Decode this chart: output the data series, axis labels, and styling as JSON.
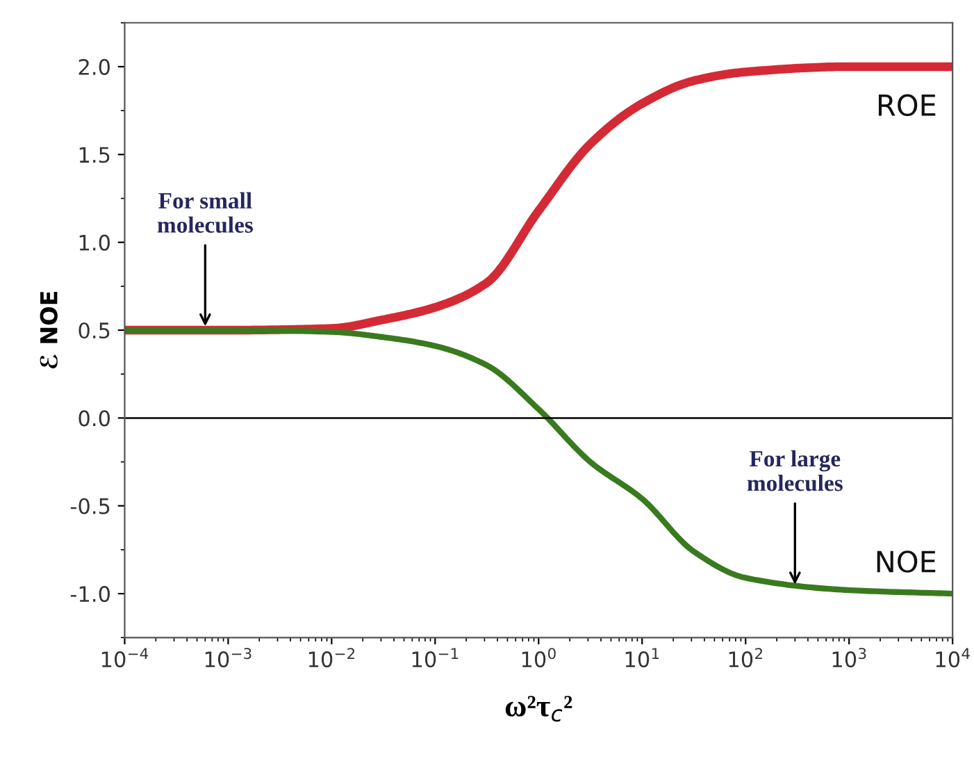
{
  "chart_data": {
    "type": "line",
    "xlabel": "ω²τ$_{c}$²",
    "ylabel": "ℰ NOE",
    "log": "x",
    "xlim": [
      0.0001,
      10000
    ],
    "ylim": [
      -1.25,
      2.25
    ],
    "xticks": [
      {
        "value": 0.0001,
        "label": "10$^{−4}$"
      },
      {
        "value": 0.001,
        "label": "10$^{−3}$"
      },
      {
        "value": 0.01,
        "label": "10$^{−2}$"
      },
      {
        "value": 0.1,
        "label": "10$^{−1}$"
      },
      {
        "value": 1,
        "label": "10$^{0}$"
      },
      {
        "value": 10,
        "label": "10$^{1}$"
      },
      {
        "value": 100,
        "label": "10$^{2}$"
      },
      {
        "value": 1000,
        "label": "10$^{3}$"
      },
      {
        "value": 10000,
        "label": "10$^{4}$"
      }
    ],
    "yticks": [
      {
        "value": -1,
        "label": "-1.0"
      },
      {
        "value": -0.5,
        "label": "-0.5"
      },
      {
        "value": 0,
        "label": "0.0"
      },
      {
        "value": 0.5,
        "label": "0.5"
      },
      {
        "value": 1,
        "label": "1.0"
      },
      {
        "value": 1.5,
        "label": "1.5"
      },
      {
        "value": 2,
        "label": "2.0"
      }
    ],
    "grid": false,
    "marker": "none",
    "line_style": "solid",
    "x": [
      0.0001,
      0.001,
      0.01,
      0.0316,
      0.1,
      0.316,
      1,
      3.16,
      10,
      31.6,
      100,
      1000,
      10000
    ],
    "series": [
      {
        "name": "ROE",
        "color": "#d42a35",
        "values": [
          0.5,
          0.5,
          0.51,
          0.56,
          0.63,
          0.77,
          1.18,
          1.56,
          1.79,
          1.92,
          1.97,
          2.0,
          2.0
        ]
      },
      {
        "name": "NOE",
        "color": "#3a7a1e",
        "values": [
          0.5,
          0.5,
          0.49,
          0.46,
          0.41,
          0.3,
          0.05,
          -0.25,
          -0.46,
          -0.76,
          -0.91,
          -0.98,
          -1.0
        ]
      }
    ],
    "ref_lines": [
      {
        "axis": "y",
        "value": 0,
        "color": "#000000"
      }
    ],
    "annotations": [
      {
        "text": "For small\nmolecules",
        "x": 0.0006,
        "y": 0.5
      },
      {
        "text": "For large\nmolecules",
        "x": 300,
        "y": -0.97
      }
    ]
  }
}
